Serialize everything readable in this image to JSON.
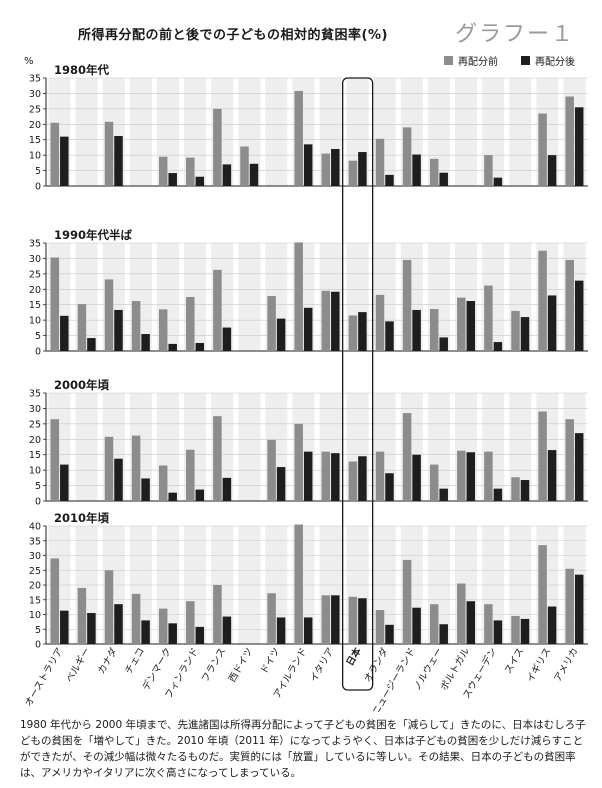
{
  "title": "所得再分配の前と後での子どもの相対的貧困率(%)",
  "graph_number": "グラフー１",
  "y_unit": "%",
  "caption": "1980 年代から 2000 年頃まで、先進諸国は所得再分配によって子どもの貧困を「減らして」きたのに、日本はむしろ子どもの貧困を「増やして」きた。2010 年頃（2011 年）になってようやく、日本は子どもの貧困を少しだけ減らすことができたが、その減少幅は微々たるものだ。実質的には「放置」しているに等しい。その結果、日本の子どもの貧困率は、アメリカやイタリアに次ぐ高さになってしまっている。",
  "colors": {
    "before": "#8c8c8c",
    "after": "#1e1e1e",
    "band": "#eeeeee",
    "axis": "#222222"
  },
  "chart_data": {
    "type": "bar",
    "legend": [
      "再配分前",
      "再配分後"
    ],
    "legend_position": "top-right",
    "highlight_category": "日本",
    "categories": [
      "オーストラリア",
      "ベルギー",
      "カナダ",
      "チェコ",
      "デンマーク",
      "フィンランド",
      "フランス",
      "西ドイツ",
      "ドイツ",
      "アイルランド",
      "イタリア",
      "日本",
      "オランダ",
      "ニュージーランド",
      "ノルウェー",
      "ポルトガル",
      "スウェーデン",
      "スイス",
      "イギリス",
      "アメリカ"
    ],
    "panels": [
      {
        "label": "1980年代",
        "ylim": [
          0,
          35
        ],
        "yticks": [
          0,
          5,
          10,
          15,
          20,
          25,
          30,
          35
        ],
        "series": [
          {
            "name": "再配分前",
            "values": [
              20.5,
              null,
              20.8,
              null,
              9.5,
              9.2,
              25,
              12.8,
              null,
              30.8,
              10.5,
              8.2,
              15.3,
              19,
              8.8,
              null,
              10,
              null,
              23.5,
              29
            ]
          },
          {
            "name": "再配分後",
            "values": [
              16,
              null,
              16.2,
              null,
              4.2,
              3,
              7,
              7.2,
              null,
              13.5,
              12,
              11,
              3.6,
              10.2,
              4.3,
              null,
              2.7,
              null,
              10,
              25.5
            ]
          }
        ]
      },
      {
        "label": "1990年代半ば",
        "ylim": [
          0,
          35
        ],
        "yticks": [
          0,
          5,
          10,
          15,
          20,
          25,
          30,
          35
        ],
        "series": [
          {
            "name": "再配分前",
            "values": [
              30.3,
              15.2,
              23.2,
              16.2,
              13.5,
              17.5,
              26.3,
              null,
              17.8,
              35.2,
              19.5,
              11.5,
              18.2,
              29.5,
              13.6,
              17.3,
              21.2,
              13,
              32.5,
              29.5
            ]
          },
          {
            "name": "再配分後",
            "values": [
              11.4,
              4.2,
              13.3,
              5.5,
              2.3,
              2.6,
              7.6,
              null,
              10.5,
              14,
              19.2,
              12.6,
              9.6,
              13.3,
              4.4,
              16.2,
              2.9,
              11,
              18,
              22.8
            ]
          }
        ]
      },
      {
        "label": "2000年頃",
        "ylim": [
          0,
          35
        ],
        "yticks": [
          0,
          5,
          10,
          15,
          20,
          25,
          30,
          35
        ],
        "series": [
          {
            "name": "再配分前",
            "values": [
              26.5,
              null,
              20.8,
              21.2,
              11.5,
              16.6,
              27.5,
              null,
              19.8,
              25,
              16,
              12.8,
              16,
              28.5,
              11.8,
              16.3,
              16,
              7.7,
              29,
              26.5
            ]
          },
          {
            "name": "再配分後",
            "values": [
              11.8,
              null,
              13.7,
              7.3,
              2.7,
              3.7,
              7.5,
              null,
              11,
              16,
              15.5,
              14.5,
              9,
              15,
              4,
              15.8,
              4,
              6.8,
              16.5,
              22
            ]
          }
        ]
      },
      {
        "label": "2010年頃",
        "ylim": [
          0,
          40
        ],
        "yticks": [
          0,
          5,
          10,
          15,
          20,
          25,
          30,
          35,
          40
        ],
        "series": [
          {
            "name": "再配分前",
            "values": [
              29,
              19,
              25,
              17,
              12,
              14.5,
              20,
              null,
              17.2,
              40.5,
              16.5,
              16,
              11.5,
              28.5,
              13.5,
              20.5,
              13.5,
              9.5,
              33.5,
              25.5
            ]
          },
          {
            "name": "再配分後",
            "values": [
              11.3,
              10.5,
              13.5,
              8,
              7,
              5.8,
              9.3,
              null,
              9,
              9,
              16.5,
              15.5,
              6.5,
              12.3,
              6.7,
              14.5,
              8,
              8.5,
              12.7,
              23.5
            ]
          }
        ]
      }
    ]
  }
}
